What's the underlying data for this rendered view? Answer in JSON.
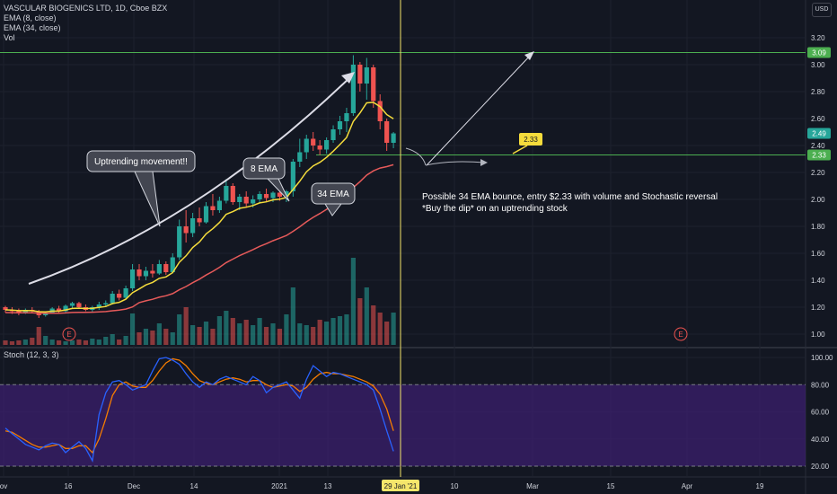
{
  "header": {
    "symbol_line": "VASCULAR BIOGENICS LTD, 1D, Cboe BZX",
    "indicators": [
      "EMA (8, close)",
      "EMA (34, close)",
      "Vol"
    ],
    "currency": "USD"
  },
  "stoch_panel": {
    "label": "Stoch (12, 3, 3)",
    "levels": [
      "100.00",
      "80.00",
      "60.00",
      "40.00",
      "20.00"
    ]
  },
  "price_axis": {
    "ticks": [
      "3.20",
      "3.00",
      "2.80",
      "2.60",
      "2.40",
      "2.20",
      "2.00",
      "1.80",
      "1.60",
      "1.40",
      "1.20",
      "1.00"
    ],
    "badges": {
      "resistance": "3.09",
      "last": "2.49",
      "support": "2.33"
    }
  },
  "time_axis": {
    "ticks": [
      "ov",
      "16",
      "Dec",
      "14",
      "2021",
      "13",
      "10",
      "Mar",
      "15",
      "Apr",
      "19"
    ],
    "cursor_label": "29 Jan '21"
  },
  "annotations": {
    "uptrend": "Uptrending movement!!",
    "ema8": "8 EMA",
    "ema34": "34 EMA",
    "level_tag": "2.33",
    "note_line1": "Possible 34 EMA bounce, entry $2.33 with volume and Stochastic reversal",
    "note_line2": "*Buy the dip* on an uptrending stock",
    "earnings_marker": "E"
  },
  "colors": {
    "background": "#131722",
    "up": "#26a69a",
    "down": "#ef5350",
    "ema8": "#f5dc3c",
    "ema34": "#e65a5a",
    "level_line": "#4caf50",
    "stoch_k": "#2962ff",
    "stoch_d": "#f57c00",
    "stoch_band": "#3b1f6e",
    "cursor": "#f5e66b"
  },
  "chart_data": {
    "type": "candlestick",
    "candles": [
      [
        1.2,
        1.21,
        1.16,
        1.18
      ],
      [
        1.18,
        1.2,
        1.15,
        1.17
      ],
      [
        1.17,
        1.19,
        1.14,
        1.16
      ],
      [
        1.16,
        1.19,
        1.15,
        1.18
      ],
      [
        1.18,
        1.2,
        1.16,
        1.17
      ],
      [
        1.17,
        1.18,
        1.12,
        1.14
      ],
      [
        1.14,
        1.17,
        1.13,
        1.16
      ],
      [
        1.16,
        1.2,
        1.15,
        1.19
      ],
      [
        1.19,
        1.21,
        1.16,
        1.17
      ],
      [
        1.17,
        1.22,
        1.16,
        1.21
      ],
      [
        1.21,
        1.24,
        1.19,
        1.23
      ],
      [
        1.23,
        1.24,
        1.19,
        1.2
      ],
      [
        1.2,
        1.22,
        1.17,
        1.18
      ],
      [
        1.18,
        1.21,
        1.16,
        1.2
      ],
      [
        1.2,
        1.24,
        1.18,
        1.22
      ],
      [
        1.22,
        1.25,
        1.2,
        1.23
      ],
      [
        1.23,
        1.32,
        1.22,
        1.3
      ],
      [
        1.3,
        1.33,
        1.25,
        1.27
      ],
      [
        1.27,
        1.36,
        1.26,
        1.34
      ],
      [
        1.34,
        1.52,
        1.32,
        1.48
      ],
      [
        1.48,
        1.52,
        1.4,
        1.43
      ],
      [
        1.43,
        1.5,
        1.4,
        1.47
      ],
      [
        1.47,
        1.52,
        1.42,
        1.45
      ],
      [
        1.45,
        1.55,
        1.44,
        1.52
      ],
      [
        1.52,
        1.54,
        1.44,
        1.46
      ],
      [
        1.46,
        1.6,
        1.45,
        1.57
      ],
      [
        1.57,
        1.85,
        1.55,
        1.8
      ],
      [
        1.8,
        1.92,
        1.68,
        1.75
      ],
      [
        1.75,
        1.9,
        1.72,
        1.86
      ],
      [
        1.86,
        1.94,
        1.8,
        1.83
      ],
      [
        1.83,
        1.98,
        1.82,
        1.95
      ],
      [
        1.95,
        2.04,
        1.88,
        1.92
      ],
      [
        1.92,
        2.02,
        1.9,
        1.99
      ],
      [
        1.99,
        2.15,
        1.97,
        2.1
      ],
      [
        2.1,
        2.12,
        1.96,
        1.98
      ],
      [
        1.98,
        2.04,
        1.92,
        2.02
      ],
      [
        2.02,
        2.06,
        1.94,
        1.97
      ],
      [
        1.97,
        2.03,
        1.94,
        2.0
      ],
      [
        2.0,
        2.06,
        1.97,
        2.04
      ],
      [
        2.04,
        2.08,
        1.98,
        2.01
      ],
      [
        2.01,
        2.06,
        1.98,
        2.05
      ],
      [
        2.05,
        2.09,
        1.99,
        2.02
      ],
      [
        2.02,
        2.07,
        1.98,
        2.06
      ],
      [
        2.06,
        2.3,
        2.02,
        2.28
      ],
      [
        2.28,
        2.45,
        2.24,
        2.35
      ],
      [
        2.35,
        2.48,
        2.3,
        2.45
      ],
      [
        2.45,
        2.5,
        2.36,
        2.4
      ],
      [
        2.4,
        2.44,
        2.33,
        2.37
      ],
      [
        2.37,
        2.46,
        2.34,
        2.44
      ],
      [
        2.44,
        2.55,
        2.42,
        2.52
      ],
      [
        2.52,
        2.62,
        2.48,
        2.58
      ],
      [
        2.58,
        2.68,
        2.5,
        2.64
      ],
      [
        2.64,
        3.07,
        2.62,
        3.0
      ],
      [
        3.0,
        3.02,
        2.8,
        2.86
      ],
      [
        2.86,
        3.05,
        2.74,
        2.98
      ],
      [
        2.98,
        3.0,
        2.68,
        2.73
      ],
      [
        2.73,
        2.78,
        2.52,
        2.58
      ],
      [
        2.58,
        2.6,
        2.36,
        2.42
      ],
      [
        2.42,
        2.5,
        2.38,
        2.49
      ]
    ],
    "volume_ratio": [
      0.05,
      0.04,
      0.05,
      0.06,
      0.08,
      0.2,
      0.1,
      0.06,
      0.05,
      0.04,
      0.05,
      0.06,
      0.05,
      0.07,
      0.06,
      0.09,
      0.12,
      0.06,
      0.1,
      0.35,
      0.14,
      0.18,
      0.16,
      0.24,
      0.18,
      0.14,
      0.34,
      0.42,
      0.22,
      0.2,
      0.26,
      0.18,
      0.32,
      0.38,
      0.3,
      0.24,
      0.28,
      0.22,
      0.3,
      0.2,
      0.24,
      0.18,
      0.34,
      0.64,
      0.24,
      0.22,
      0.2,
      0.28,
      0.26,
      0.3,
      0.32,
      0.34,
      0.97,
      0.52,
      0.64,
      0.44,
      0.36,
      0.26,
      0.36
    ],
    "stoch": {
      "k": [
        48,
        44,
        40,
        36,
        34,
        32,
        35,
        37,
        36,
        30,
        34,
        38,
        33,
        24,
        58,
        74,
        82,
        83,
        80,
        76,
        78,
        80,
        90,
        99,
        100,
        98,
        95,
        88,
        82,
        78,
        82,
        80,
        84,
        86,
        84,
        82,
        80,
        86,
        83,
        74,
        78,
        80,
        82,
        76,
        70,
        84,
        94,
        90,
        86,
        89,
        88,
        86,
        84,
        82,
        80,
        76,
        62,
        46,
        31
      ],
      "d": [
        46,
        45,
        42,
        39,
        36,
        34,
        34,
        35,
        36,
        33,
        33,
        35,
        35,
        30,
        40,
        55,
        72,
        80,
        82,
        79,
        78,
        78,
        83,
        90,
        96,
        99,
        98,
        94,
        88,
        83,
        81,
        80,
        82,
        84,
        85,
        84,
        82,
        83,
        83,
        80,
        78,
        79,
        80,
        79,
        75,
        78,
        84,
        88,
        89,
        88,
        88,
        87,
        86,
        84,
        82,
        79,
        73,
        62,
        46
      ]
    },
    "ylim": [
      1.0,
      3.2
    ],
    "stoch_levels": {
      "upper": 80,
      "lower": 20
    }
  }
}
